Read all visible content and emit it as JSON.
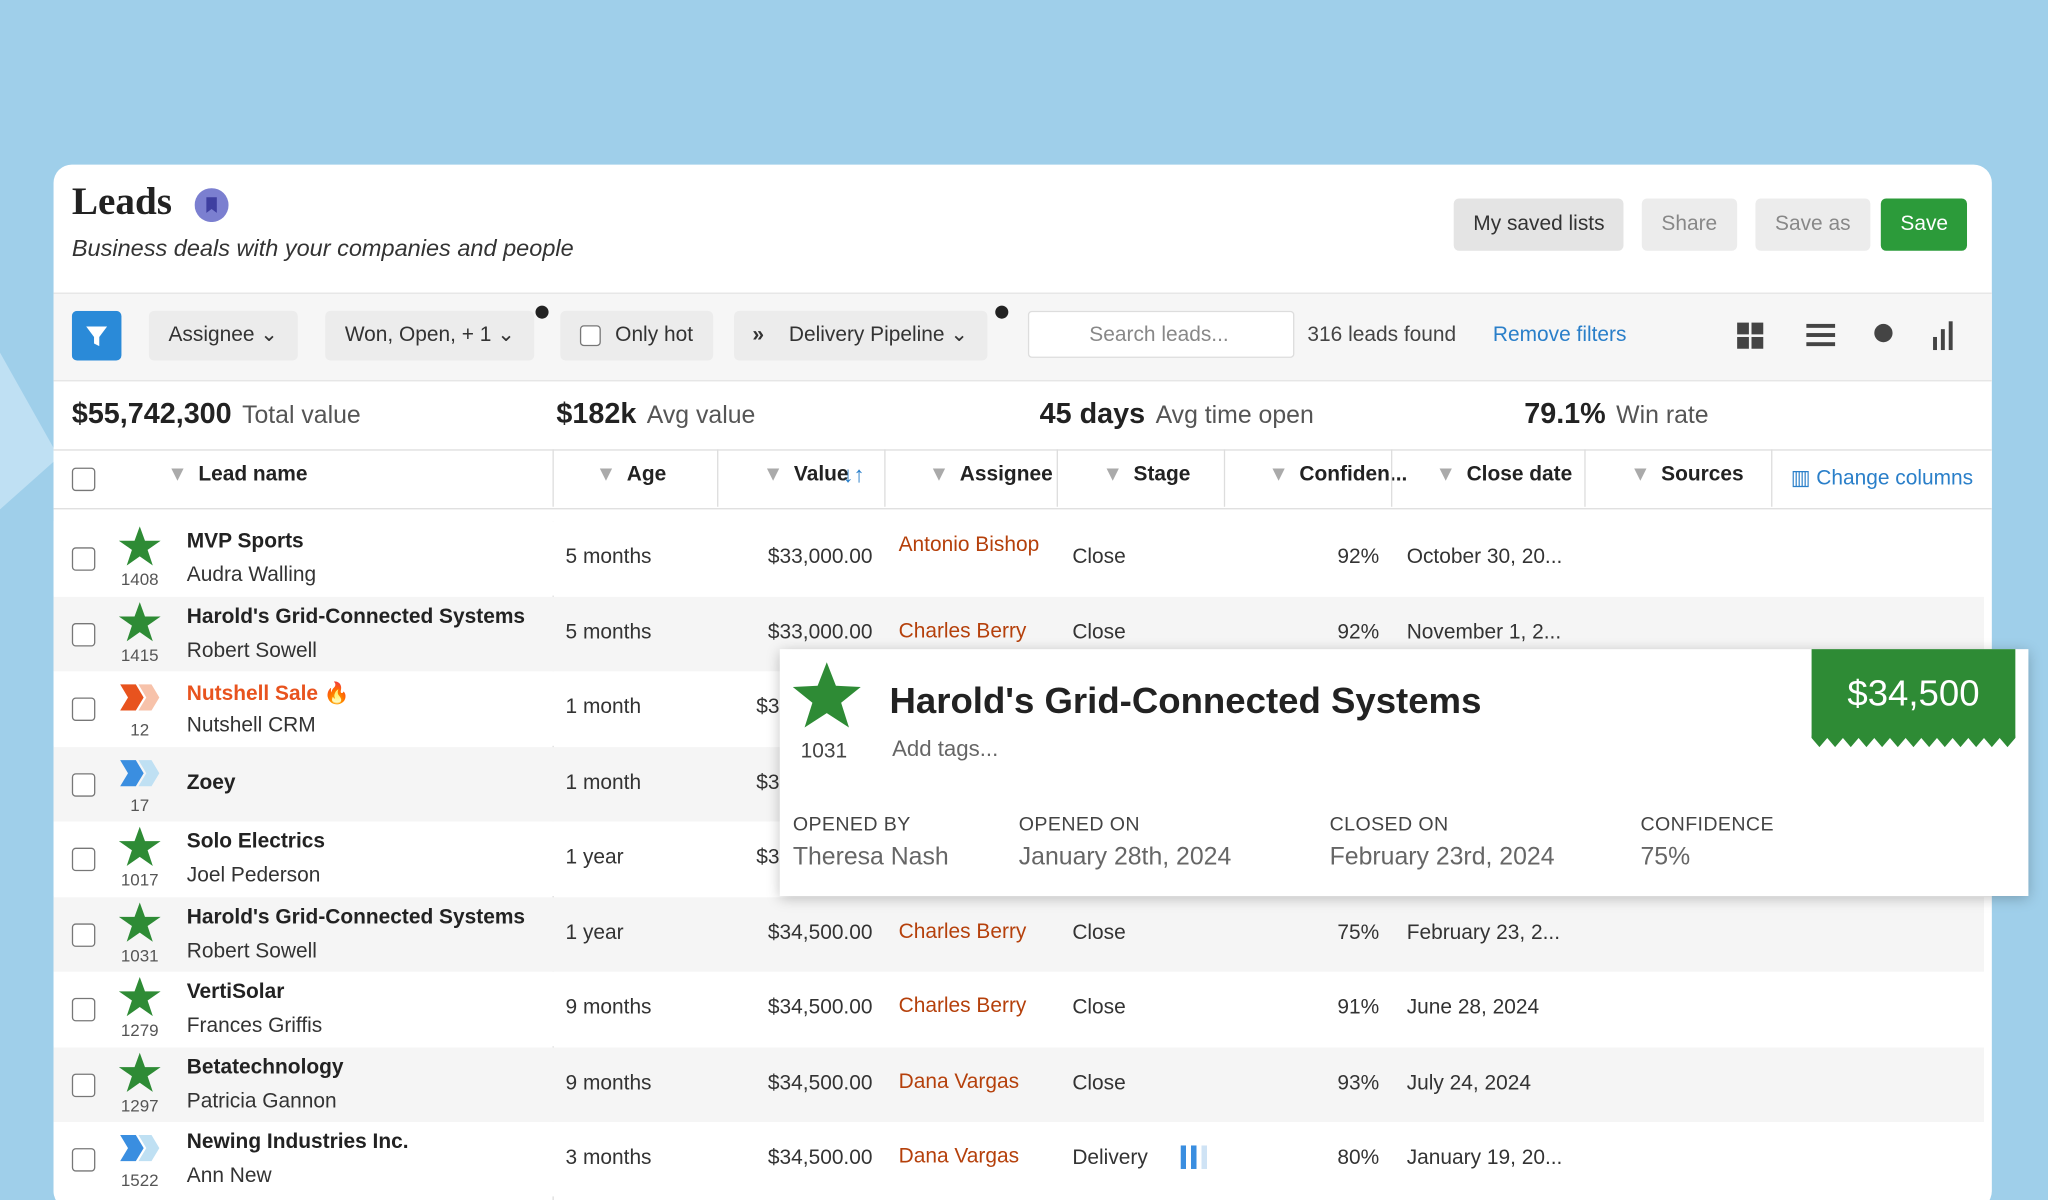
{
  "header": {
    "title": "Leads",
    "subtitle": "Business deals with your companies and people",
    "buttons": [
      "My saved lists",
      "Share",
      "Save as",
      "Save"
    ]
  },
  "toolbar": {
    "filters": [
      "Assignee",
      "Won, Open, + 1",
      "Only hot",
      "Delivery Pipeline"
    ],
    "search_placeholder": "Search leads...",
    "count": "316 leads found",
    "remove_filters": "Remove filters"
  },
  "stats": [
    {
      "value": "$55,742,300",
      "label": "Total value"
    },
    {
      "value": "$182k",
      "label": "Avg value"
    },
    {
      "value": "45 days",
      "label": "Avg time open"
    },
    {
      "value": "79.1%",
      "label": "Win rate"
    }
  ],
  "table": {
    "columns": [
      "Lead name",
      "Age",
      "Value",
      "Assignee",
      "Stage",
      "Confiden...",
      "Close date",
      "Sources"
    ],
    "change_columns": "Change columns",
    "rows": [
      {
        "icon": "star",
        "id": "1408",
        "name": "MVP Sports",
        "contact": "Audra Walling",
        "age": "5 months",
        "value": "$33,000.00",
        "assignee": "Antonio Bishop",
        "stage": "Close",
        "confidence": "92%",
        "close_date": "October 30, 20..."
      },
      {
        "icon": "star",
        "id": "1415",
        "name": "Harold's Grid-Connected Systems",
        "contact": "Robert Sowell",
        "age": "5 months",
        "value": "$33,000.00",
        "assignee": "Charles Berry",
        "stage": "Close",
        "confidence": "92%",
        "close_date": "November 1, 2..."
      },
      {
        "icon": "hot",
        "id": "12",
        "name": "Nutshell Sale",
        "contact": "Nutshell CRM",
        "age": "1 month",
        "value": "$3"
      },
      {
        "icon": "pipe",
        "id": "17",
        "name": "Zoey",
        "age": "1 month",
        "value": "$3"
      },
      {
        "icon": "star",
        "id": "1017",
        "name": "Solo Electrics",
        "contact": "Joel Pederson",
        "age": "1 year",
        "value": "$3"
      },
      {
        "icon": "star",
        "id": "1031",
        "name": "Harold's Grid-Connected Systems",
        "contact": "Robert Sowell",
        "age": "1 year",
        "value": "$34,500.00",
        "assignee": "Charles Berry",
        "stage": "Close",
        "confidence": "75%",
        "close_date": "February 23, 2..."
      },
      {
        "icon": "star",
        "id": "1279",
        "name": "VertiSolar",
        "contact": "Frances Griffis",
        "age": "9 months",
        "value": "$34,500.00",
        "assignee": "Charles Berry",
        "stage": "Close",
        "confidence": "91%",
        "close_date": "June 28, 2024"
      },
      {
        "icon": "star",
        "id": "1297",
        "name": "Betatechnology",
        "contact": "Patricia Gannon",
        "age": "9 months",
        "value": "$34,500.00",
        "assignee": "Dana Vargas",
        "stage": "Close",
        "confidence": "93%",
        "close_date": "July 24, 2024"
      },
      {
        "icon": "pipe",
        "id": "1522",
        "name": "Newing Industries Inc.",
        "contact": "Ann New",
        "age": "3 months",
        "value": "$34,500.00",
        "assignee": "Dana Vargas",
        "stage": "Delivery",
        "confidence": "80%",
        "close_date": "January 19, 20..."
      }
    ]
  },
  "popup": {
    "id": "1031",
    "title": "Harold's Grid-Connected Systems",
    "tags": "Add tags...",
    "price": "$34,500",
    "fields": [
      {
        "label": "OPENED BY",
        "value": "Theresa Nash"
      },
      {
        "label": "OPENED ON",
        "value": "January 28th, 2024"
      },
      {
        "label": "CLOSED ON",
        "value": "February 23rd, 2024"
      },
      {
        "label": "CONFIDENCE",
        "value": "75%"
      }
    ]
  }
}
